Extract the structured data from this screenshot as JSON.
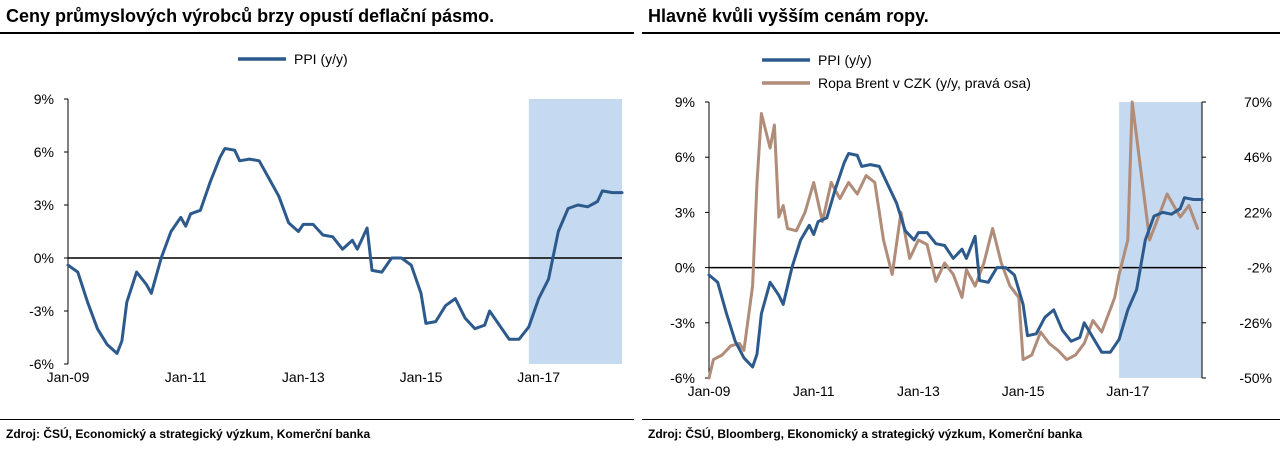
{
  "panels": [
    {
      "title": "Ceny průmyslových výrobců brzy opustí deflační pásmo.",
      "source": "Zdroj: ČSÚ, Economický a strategický výzkum, Komerční banka"
    },
    {
      "title": "Hlavně kvůli vyšším cenám ropy.",
      "source": "Zdroj: ČSÚ, Bloomberg, Ekonomický a strategický výzkum, Komerční banka"
    }
  ],
  "colors": {
    "ppi": "#2d5a8c",
    "brent": "#b08c79",
    "shade": "#c5d9f1",
    "zero_line": "#000000"
  },
  "chart_data": [
    {
      "type": "line",
      "title": "Ceny průmyslových výrobců brzy opustí deflační pásmo.",
      "x_tick_labels": [
        "Jan-09",
        "Jan-11",
        "Jan-13",
        "Jan-15",
        "Jan-17"
      ],
      "y_tick_labels": [
        "9%",
        "6%",
        "3%",
        "0%",
        "-3%",
        "-6%"
      ],
      "ylim": [
        -6,
        9
      ],
      "xlim": [
        "2009-01",
        "2018-06"
      ],
      "legend": "top-center",
      "shaded_region": [
        "2016-11",
        "2018-06"
      ],
      "series": [
        {
          "name": "PPI (y/y)",
          "axis": "left",
          "points": [
            [
              "2009-01",
              -0.4
            ],
            [
              "2009-03",
              -0.8
            ],
            [
              "2009-05",
              -2.5
            ],
            [
              "2009-07",
              -4.0
            ],
            [
              "2009-09",
              -4.9
            ],
            [
              "2009-11",
              -5.4
            ],
            [
              "2009-12",
              -4.7
            ],
            [
              "2010-01",
              -2.5
            ],
            [
              "2010-03",
              -0.8
            ],
            [
              "2010-05",
              -1.5
            ],
            [
              "2010-06",
              -2.0
            ],
            [
              "2010-08",
              0.0
            ],
            [
              "2010-10",
              1.5
            ],
            [
              "2010-12",
              2.3
            ],
            [
              "2011-01",
              1.8
            ],
            [
              "2011-02",
              2.5
            ],
            [
              "2011-04",
              2.7
            ],
            [
              "2011-06",
              4.3
            ],
            [
              "2011-08",
              5.7
            ],
            [
              "2011-09",
              6.2
            ],
            [
              "2011-11",
              6.1
            ],
            [
              "2011-12",
              5.5
            ],
            [
              "2012-02",
              5.6
            ],
            [
              "2012-04",
              5.5
            ],
            [
              "2012-06",
              4.5
            ],
            [
              "2012-08",
              3.5
            ],
            [
              "2012-10",
              2.0
            ],
            [
              "2012-12",
              1.5
            ],
            [
              "2013-01",
              1.9
            ],
            [
              "2013-03",
              1.9
            ],
            [
              "2013-05",
              1.3
            ],
            [
              "2013-07",
              1.2
            ],
            [
              "2013-09",
              0.5
            ],
            [
              "2013-11",
              1.0
            ],
            [
              "2013-12",
              0.5
            ],
            [
              "2014-02",
              1.7
            ],
            [
              "2014-03",
              -0.7
            ],
            [
              "2014-05",
              -0.8
            ],
            [
              "2014-07",
              0.0
            ],
            [
              "2014-09",
              0.0
            ],
            [
              "2014-11",
              -0.4
            ],
            [
              "2015-01",
              -2.0
            ],
            [
              "2015-02",
              -3.7
            ],
            [
              "2015-04",
              -3.6
            ],
            [
              "2015-06",
              -2.7
            ],
            [
              "2015-08",
              -2.3
            ],
            [
              "2015-10",
              -3.4
            ],
            [
              "2015-12",
              -4.0
            ],
            [
              "2016-02",
              -3.8
            ],
            [
              "2016-03",
              -3.0
            ],
            [
              "2016-05",
              -3.8
            ],
            [
              "2016-07",
              -4.6
            ],
            [
              "2016-09",
              -4.6
            ],
            [
              "2016-11",
              -3.9
            ],
            [
              "2017-01",
              -2.3
            ],
            [
              "2017-03",
              -1.2
            ],
            [
              "2017-05",
              1.5
            ],
            [
              "2017-07",
              2.8
            ],
            [
              "2017-09",
              3.0
            ],
            [
              "2017-11",
              2.9
            ],
            [
              "2018-01",
              3.2
            ],
            [
              "2018-02",
              3.8
            ],
            [
              "2018-04",
              3.7
            ],
            [
              "2018-06",
              3.7
            ]
          ]
        }
      ]
    },
    {
      "type": "line",
      "title": "Hlavně kvůli vyšším cenám ropy.",
      "x_tick_labels": [
        "Jan-09",
        "Jan-11",
        "Jan-13",
        "Jan-15",
        "Jan-17"
      ],
      "y_tick_labels": [
        "9%",
        "6%",
        "3%",
        "0%",
        "-3%",
        "-6%"
      ],
      "y2_tick_labels": [
        "70%",
        "46%",
        "22%",
        "-2%",
        "-26%",
        "-50%"
      ],
      "ylim": [
        -6,
        9
      ],
      "y2lim": [
        -50,
        70
      ],
      "xlim": [
        "2009-01",
        "2018-06"
      ],
      "legend": "top-left",
      "shaded_region": [
        "2016-11",
        "2018-06"
      ],
      "series": [
        {
          "name": "PPI (y/y)",
          "axis": "left",
          "points": [
            [
              "2009-01",
              -0.4
            ],
            [
              "2009-03",
              -0.8
            ],
            [
              "2009-05",
              -2.5
            ],
            [
              "2009-07",
              -4.0
            ],
            [
              "2009-09",
              -4.9
            ],
            [
              "2009-11",
              -5.4
            ],
            [
              "2009-12",
              -4.7
            ],
            [
              "2010-01",
              -2.5
            ],
            [
              "2010-03",
              -0.8
            ],
            [
              "2010-05",
              -1.5
            ],
            [
              "2010-06",
              -2.0
            ],
            [
              "2010-08",
              0.0
            ],
            [
              "2010-10",
              1.5
            ],
            [
              "2010-12",
              2.3
            ],
            [
              "2011-01",
              1.8
            ],
            [
              "2011-02",
              2.5
            ],
            [
              "2011-04",
              2.7
            ],
            [
              "2011-06",
              4.3
            ],
            [
              "2011-08",
              5.7
            ],
            [
              "2011-09",
              6.2
            ],
            [
              "2011-11",
              6.1
            ],
            [
              "2011-12",
              5.5
            ],
            [
              "2012-02",
              5.6
            ],
            [
              "2012-04",
              5.5
            ],
            [
              "2012-06",
              4.5
            ],
            [
              "2012-08",
              3.5
            ],
            [
              "2012-10",
              2.0
            ],
            [
              "2012-12",
              1.5
            ],
            [
              "2013-01",
              1.9
            ],
            [
              "2013-03",
              1.9
            ],
            [
              "2013-05",
              1.3
            ],
            [
              "2013-07",
              1.2
            ],
            [
              "2013-09",
              0.5
            ],
            [
              "2013-11",
              1.0
            ],
            [
              "2013-12",
              0.5
            ],
            [
              "2014-02",
              1.7
            ],
            [
              "2014-03",
              -0.7
            ],
            [
              "2014-05",
              -0.8
            ],
            [
              "2014-07",
              0.0
            ],
            [
              "2014-09",
              0.0
            ],
            [
              "2014-11",
              -0.4
            ],
            [
              "2015-01",
              -2.0
            ],
            [
              "2015-02",
              -3.7
            ],
            [
              "2015-04",
              -3.6
            ],
            [
              "2015-06",
              -2.7
            ],
            [
              "2015-08",
              -2.3
            ],
            [
              "2015-10",
              -3.4
            ],
            [
              "2015-12",
              -4.0
            ],
            [
              "2016-02",
              -3.8
            ],
            [
              "2016-03",
              -3.0
            ],
            [
              "2016-05",
              -3.8
            ],
            [
              "2016-07",
              -4.6
            ],
            [
              "2016-09",
              -4.6
            ],
            [
              "2016-11",
              -3.9
            ],
            [
              "2017-01",
              -2.3
            ],
            [
              "2017-03",
              -1.2
            ],
            [
              "2017-05",
              1.5
            ],
            [
              "2017-07",
              2.8
            ],
            [
              "2017-09",
              3.0
            ],
            [
              "2017-11",
              2.9
            ],
            [
              "2018-01",
              3.2
            ],
            [
              "2018-02",
              3.8
            ],
            [
              "2018-04",
              3.7
            ],
            [
              "2018-06",
              3.7
            ]
          ]
        },
        {
          "name": "Ropa Brent v CZK (y/y, pravá osa)",
          "axis": "right",
          "points": [
            [
              "2009-01",
              -50
            ],
            [
              "2009-02",
              -42
            ],
            [
              "2009-04",
              -40
            ],
            [
              "2009-06",
              -36
            ],
            [
              "2009-08",
              -35
            ],
            [
              "2009-09",
              -38
            ],
            [
              "2009-11",
              -10
            ],
            [
              "2009-12",
              35
            ],
            [
              "2010-01",
              65
            ],
            [
              "2010-03",
              50
            ],
            [
              "2010-04",
              60
            ],
            [
              "2010-05",
              20
            ],
            [
              "2010-06",
              25
            ],
            [
              "2010-07",
              15
            ],
            [
              "2010-09",
              14
            ],
            [
              "2010-11",
              22
            ],
            [
              "2011-01",
              35
            ],
            [
              "2011-03",
              18
            ],
            [
              "2011-05",
              35
            ],
            [
              "2011-07",
              28
            ],
            [
              "2011-09",
              35
            ],
            [
              "2011-11",
              30
            ],
            [
              "2012-01",
              38
            ],
            [
              "2012-03",
              35
            ],
            [
              "2012-05",
              10
            ],
            [
              "2012-07",
              -5
            ],
            [
              "2012-09",
              22
            ],
            [
              "2012-11",
              2
            ],
            [
              "2013-01",
              10
            ],
            [
              "2013-03",
              8
            ],
            [
              "2013-05",
              -8
            ],
            [
              "2013-07",
              0
            ],
            [
              "2013-09",
              -5
            ],
            [
              "2013-11",
              -15
            ],
            [
              "2013-12",
              -3
            ],
            [
              "2014-02",
              -10
            ],
            [
              "2014-04",
              0
            ],
            [
              "2014-06",
              15
            ],
            [
              "2014-08",
              0
            ],
            [
              "2014-10",
              -10
            ],
            [
              "2014-12",
              -15
            ],
            [
              "2015-01",
              -42
            ],
            [
              "2015-03",
              -40
            ],
            [
              "2015-05",
              -30
            ],
            [
              "2015-07",
              -35
            ],
            [
              "2015-09",
              -38
            ],
            [
              "2015-11",
              -42
            ],
            [
              "2016-01",
              -40
            ],
            [
              "2016-03",
              -35
            ],
            [
              "2016-05",
              -25
            ],
            [
              "2016-07",
              -30
            ],
            [
              "2016-09",
              -20
            ],
            [
              "2016-10",
              -15
            ],
            [
              "2016-11",
              -5
            ],
            [
              "2017-01",
              10
            ],
            [
              "2017-02",
              70
            ],
            [
              "2017-04",
              40
            ],
            [
              "2017-06",
              10
            ],
            [
              "2017-08",
              20
            ],
            [
              "2017-10",
              30
            ],
            [
              "2018-01",
              20
            ],
            [
              "2018-03",
              25
            ],
            [
              "2018-05",
              15
            ]
          ]
        }
      ]
    }
  ]
}
